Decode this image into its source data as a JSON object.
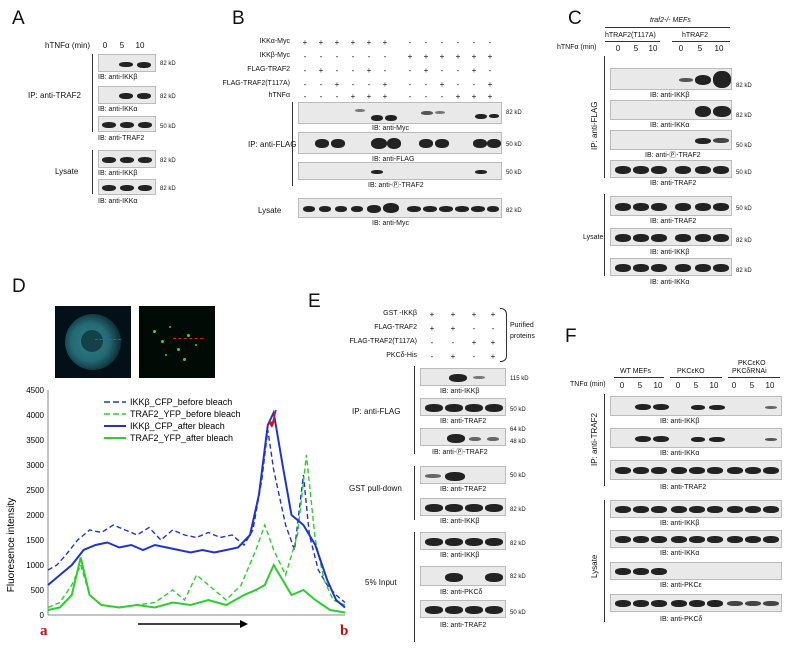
{
  "panels": {
    "A": "A",
    "B": "B",
    "C": "C",
    "D": "D",
    "E": "E",
    "F": "F"
  },
  "panelA": {
    "condition_label": "hTNFα (min)",
    "timepoints": [
      "0",
      "5",
      "10"
    ],
    "ip_label": "IP: anti-TRAF2",
    "lysate_label": "Lysate",
    "blots": [
      "IB: anti-IKKβ",
      "IB: anti-IKKα",
      "IB: anti-TRAF2",
      "IB: anti-IKKβ",
      "IB: anti-IKKα"
    ],
    "mw": [
      "82 kD",
      "82 kD",
      "50 kD",
      "82 kD",
      "82 kD"
    ]
  },
  "panelB": {
    "row_labels": [
      "IKKα-Myc",
      "IKKβ-Myc",
      "FLAG-TRAF2",
      "FLAG-TRAF2(T117A)",
      "hTNFα"
    ],
    "row_signs": [
      [
        "+",
        "+",
        "+",
        "+",
        "+",
        "+",
        "-",
        "-",
        "-",
        "-",
        "-",
        "-"
      ],
      [
        "-",
        "-",
        "-",
        "-",
        "-",
        "-",
        "+",
        "+",
        "+",
        "+",
        "+",
        "+"
      ],
      [
        "-",
        "+",
        "-",
        "-",
        "+",
        "-",
        "-",
        "+",
        "-",
        "-",
        "+",
        "-"
      ],
      [
        "-",
        "-",
        "+",
        "-",
        "-",
        "+",
        "-",
        "-",
        "+",
        "-",
        "-",
        "+"
      ],
      [
        "-",
        "-",
        "-",
        "+",
        "+",
        "+",
        "-",
        "-",
        "-",
        "+",
        "+",
        "+"
      ]
    ],
    "ip_label": "IP: anti-FLAG",
    "lysate_label": "Lysate",
    "blots": [
      "IB: anti-Myc",
      "IB: anti-FLAG",
      "IB: anti-Ⓟ-TRAF2",
      "IB: anti-Myc"
    ],
    "mw": [
      "82 kD",
      "50 kD",
      "50 kD",
      "82 kD"
    ]
  },
  "panelC": {
    "title": "traf2-/- MEFs",
    "group1": "hTRAF2(T117A)",
    "group2": "hTRAF2",
    "condition_label": "hTNFα (min)",
    "timepoints": [
      "0",
      "5",
      "10",
      "0",
      "5",
      "10"
    ],
    "ip_label": "IP: anti-FLAG",
    "lysate_label": "Lysate",
    "blots": [
      "IB: anti-IKKβ",
      "IB: anti-IKKα",
      "IB: anti-Ⓟ-TRAF2",
      "IB: anti-TRAF2",
      "IB: anti-TRAF2",
      "IB: anti-IKKβ",
      "IB: anti-IKKα"
    ],
    "mw": [
      "82 kD",
      "82 kD",
      "50 kD",
      "50 kD",
      "50 kD",
      "82 kD",
      "82 kD"
    ]
  },
  "panelD": {
    "ylabel": "Fluoresence intensity",
    "yticks": [
      "0",
      "500",
      "1000",
      "1500",
      "2000",
      "2500",
      "3000",
      "3500",
      "4000",
      "4500"
    ],
    "start_label": "a",
    "end_label": "b",
    "legend": [
      "IKKβ_CFP_before bleach",
      "TRAF2_YFP_before bleach",
      "IKKβ_CFP_after bleach",
      "TRAF2_YFP_after bleach"
    ],
    "colors": {
      "cfp": "#1f35c9",
      "yfp": "#2ecc2e",
      "marker": "#e01010"
    }
  },
  "panelE": {
    "row_labels": [
      "GST -IKKβ",
      "FLAG-TRAF2",
      "FLAG-TRAF2(T117A)",
      "PKCδ-His"
    ],
    "row_signs": [
      [
        "+",
        "+",
        "+",
        "+"
      ],
      [
        "+",
        "+",
        "-",
        "-"
      ],
      [
        "-",
        "-",
        "+",
        "+"
      ],
      [
        "-",
        "+",
        "-",
        "+"
      ]
    ],
    "purified": "Purified proteins",
    "ip_label": "IP: anti-FLAG",
    "gst_label": "GST pull-down",
    "input_label": "5% Input",
    "blots": [
      "IB: anti-IKKβ",
      "IB: anti-TRAF2",
      "IB: anti-Ⓟ-TRAF2",
      "IB: anti-TRAF2",
      "IB: anti-IKKβ",
      "IB: anti-IKKβ",
      "IB: anti-PKCδ",
      "IB: anti-TRAF2"
    ],
    "mw": [
      "115 kD",
      "50 kD",
      "64 kD",
      "48 kD",
      "50 kD",
      "82 kD",
      "82 kD",
      "82 kD",
      "50 kD"
    ]
  },
  "panelF": {
    "group1": "WT MEFs",
    "group2": "PKCεKO",
    "group3a": "PKCεKO",
    "group3b": "PKCδRNAi",
    "condition_label": "TNFα (min)",
    "timepoints": [
      "0",
      "5",
      "10",
      "0",
      "5",
      "10",
      "0",
      "5",
      "10"
    ],
    "ip_label": "IP: anti-TRAF2",
    "lysate_label": "Lysate",
    "blots": [
      "IB: anti-IKKβ",
      "IB: anti-IKKα",
      "IB: anti-TRAF2",
      "IB: anti-IKKβ",
      "IB: anti-IKKα",
      "IB: anti-PKCε",
      "IB: anti-PKCδ"
    ]
  }
}
